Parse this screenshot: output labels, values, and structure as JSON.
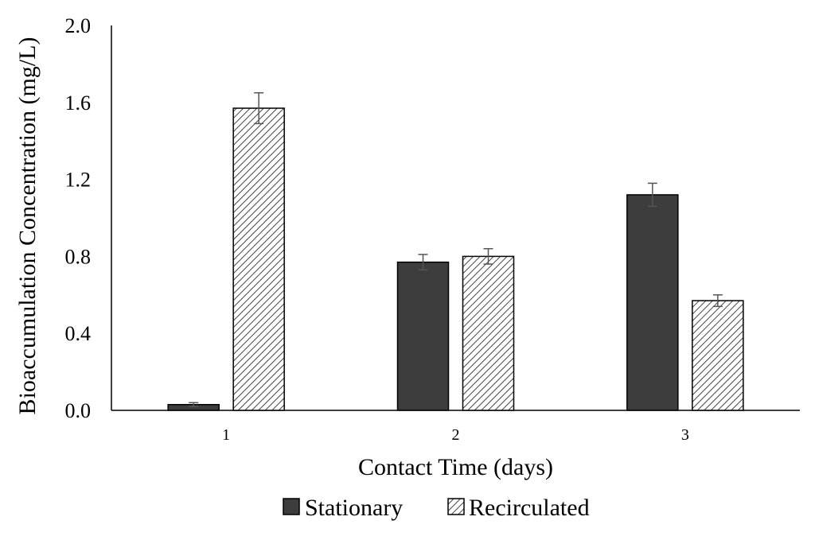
{
  "chart_data": {
    "type": "bar",
    "title": "",
    "xlabel": "Contact Time (days)",
    "ylabel": "Bioaccumulation Concentration (mg/L)",
    "categories": [
      "1",
      "2",
      "3"
    ],
    "ylim": [
      0,
      2.0
    ],
    "yticks": [
      "0.0",
      "0.4",
      "0.8",
      "1.2",
      "1.6",
      "2.0"
    ],
    "grid": false,
    "legend_position": "bottom",
    "series": [
      {
        "name": "Stationary",
        "values": [
          0.03,
          0.77,
          1.12
        ],
        "errors": [
          0.01,
          0.04,
          0.06
        ],
        "color": "#3d3d3d",
        "pattern": "solid"
      },
      {
        "name": "Recirculated",
        "values": [
          1.57,
          0.8,
          0.57
        ],
        "errors": [
          0.08,
          0.04,
          0.03
        ],
        "color": "#ffffff",
        "pattern": "diagonal-hatch"
      }
    ]
  }
}
